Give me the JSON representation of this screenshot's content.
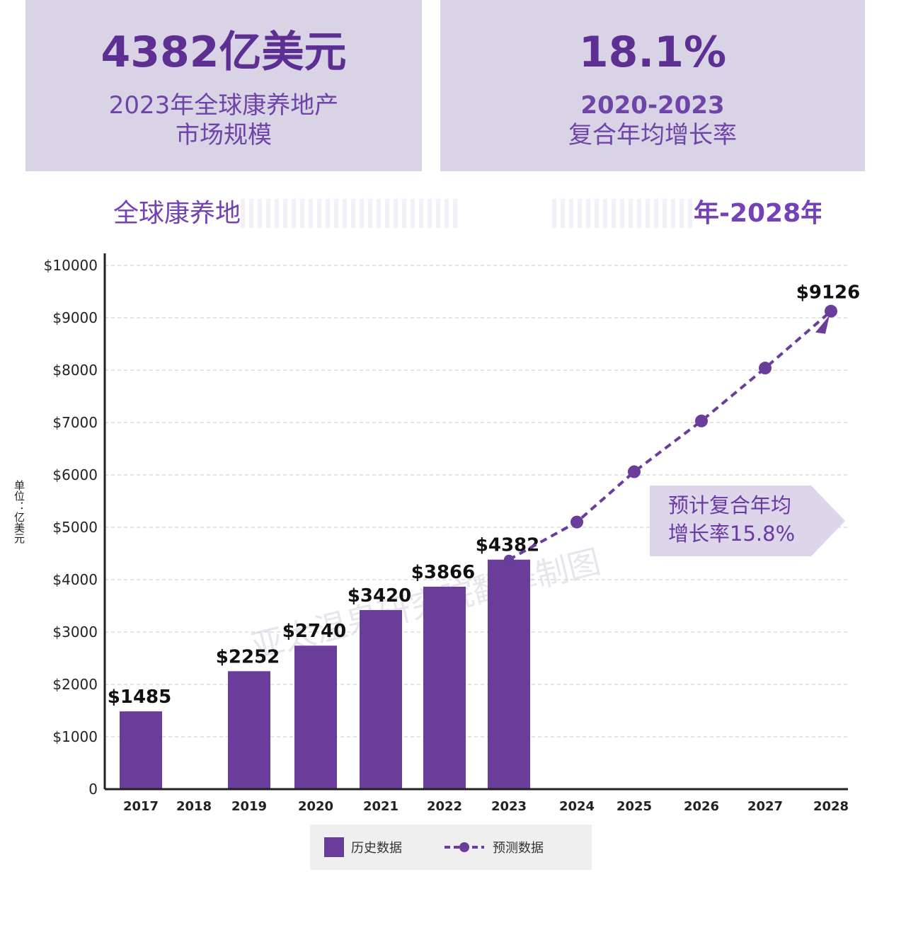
{
  "cards": {
    "left": {
      "value": "4382亿美元",
      "line1": "2023年全球康养地产",
      "line2": "市场规模"
    },
    "right": {
      "value": "18.1%",
      "line1": "2020-2023",
      "line2": "复合年均增长率"
    }
  },
  "chart_title": {
    "start": "全球康养地",
    "end": "年-2028年）"
  },
  "unit_label": "单位：亿美元",
  "watermark": "亚太温泉研究院翻译制图",
  "annotation": {
    "line1": "预计复合年均",
    "line2": "增长率15.8%"
  },
  "legend": {
    "historical": "历史数据",
    "forecast": "预测数据"
  },
  "colors": {
    "bar": "#6a3d9a",
    "line": "#6a3d9a",
    "card_bg": "#d9d3e6",
    "callout_bg": "#ddd6ea"
  },
  "chart_data": {
    "type": "bar",
    "categories": [
      "2017",
      "2018",
      "2019",
      "2020",
      "2021",
      "2022",
      "2023",
      "2024",
      "2025",
      "2026",
      "2027",
      "2028"
    ],
    "series": [
      {
        "name": "历史数据",
        "type": "bar",
        "values": [
          1485,
          null,
          2252,
          2740,
          3420,
          3866,
          4382,
          null,
          null,
          null,
          null,
          null
        ],
        "labels": [
          "$1485",
          null,
          "$2252",
          "$2740",
          "$3420",
          "$3866",
          "$4382",
          null,
          null,
          null,
          null,
          null
        ]
      },
      {
        "name": "预测数据",
        "type": "line",
        "style": "dashed",
        "values": [
          null,
          null,
          null,
          null,
          null,
          null,
          4382,
          5100,
          6060,
          7030,
          8040,
          9126
        ],
        "labels": [
          null,
          null,
          null,
          null,
          null,
          null,
          null,
          null,
          null,
          null,
          null,
          "$9126"
        ]
      }
    ],
    "yticks": [
      "0",
      "$1000",
      "$2000",
      "$3000",
      "$4000",
      "$5000",
      "$6000",
      "$7000",
      "$8000",
      "$9000",
      "$10000"
    ],
    "ylim": [
      0,
      10000
    ],
    "grid": true,
    "legend_position": "bottom-center"
  }
}
